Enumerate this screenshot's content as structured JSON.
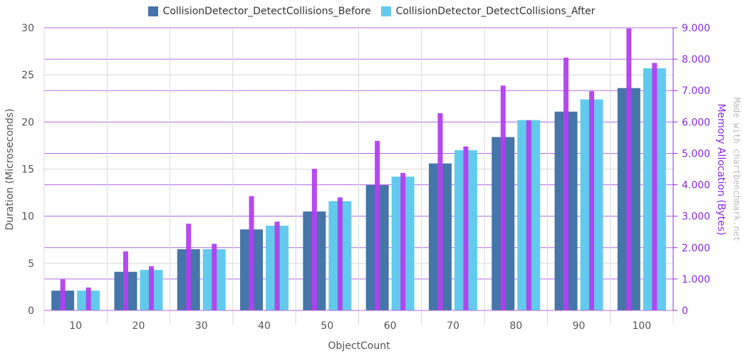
{
  "chart_data": {
    "type": "bar",
    "categories": [
      "10",
      "20",
      "30",
      "40",
      "50",
      "60",
      "70",
      "80",
      "90",
      "100"
    ],
    "series": [
      {
        "name": "CollisionDetector_DetectCollisions_Before",
        "axis": "left",
        "color": "#4575a9",
        "values": [
          2.1,
          4.1,
          6.5,
          8.6,
          10.5,
          13.3,
          15.6,
          18.4,
          21.1,
          23.6
        ]
      },
      {
        "name": "CollisionDetector_DetectCollisions_After",
        "axis": "left",
        "color": "#62cbed",
        "values": [
          2.1,
          4.3,
          6.5,
          9.0,
          11.6,
          14.2,
          17.0,
          20.2,
          22.4,
          25.7
        ]
      },
      {
        "axis": "right",
        "color": "#b23ff0",
        "values": [
          990,
          1880,
          2760,
          3640,
          4510,
          5400,
          6280,
          7160,
          8050,
          8980
        ]
      },
      {
        "axis": "right",
        "color": "#b23ff0",
        "values": [
          730,
          1410,
          2120,
          2830,
          3600,
          4380,
          5220,
          6050,
          6980,
          7880
        ]
      }
    ],
    "xlabel": "ObjectCount",
    "ylabel": "Duration (Microseconds)",
    "ylabel_right": "Memory Allocation (Bytes)",
    "ylim": [
      0,
      30
    ],
    "ylim_right": [
      0,
      9000
    ],
    "yticks": [
      "0",
      "5",
      "10",
      "15",
      "20",
      "25",
      "30"
    ],
    "yticks_right": [
      "0",
      "1.000",
      "2.000",
      "3.000",
      "4.000",
      "5.000",
      "6.000",
      "7.000",
      "8.000",
      "9.000"
    ],
    "legend": "top-center",
    "grid": true
  },
  "watermark": "Made with chartbenchmark.net"
}
